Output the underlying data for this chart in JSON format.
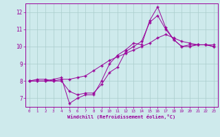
{
  "xlabel": "Windchill (Refroidissement éolien,°C)",
  "ylabel": "",
  "bg_color": "#ceeaec",
  "line_color": "#990099",
  "grid_color": "#aacccc",
  "xlim": [
    -0.5,
    23.5
  ],
  "ylim": [
    6.5,
    12.5
  ],
  "yticks": [
    7,
    8,
    9,
    10,
    11,
    12
  ],
  "xticks": [
    0,
    1,
    2,
    3,
    4,
    5,
    6,
    7,
    8,
    9,
    10,
    11,
    12,
    13,
    14,
    15,
    16,
    17,
    18,
    19,
    20,
    21,
    22,
    23
  ],
  "series": [
    [
      8.0,
      8.1,
      8.1,
      8.0,
      8.0,
      7.4,
      7.2,
      7.3,
      7.3,
      7.8,
      8.5,
      8.8,
      9.7,
      10.0,
      10.3,
      11.4,
      11.8,
      11.0,
      10.4,
      10.0,
      10.0,
      10.1,
      10.1,
      10.0
    ],
    [
      8.0,
      8.0,
      8.0,
      8.1,
      8.2,
      6.7,
      7.0,
      7.2,
      7.2,
      8.0,
      9.0,
      9.5,
      9.8,
      10.2,
      10.1,
      11.5,
      12.3,
      11.1,
      10.4,
      10.0,
      10.1,
      10.1,
      10.1,
      10.1
    ],
    [
      8.0,
      8.0,
      8.0,
      8.0,
      8.1,
      8.1,
      8.2,
      8.3,
      8.6,
      8.9,
      9.2,
      9.4,
      9.6,
      9.8,
      10.0,
      10.2,
      10.5,
      10.7,
      10.5,
      10.3,
      10.2,
      10.1,
      10.1,
      10.0
    ]
  ]
}
